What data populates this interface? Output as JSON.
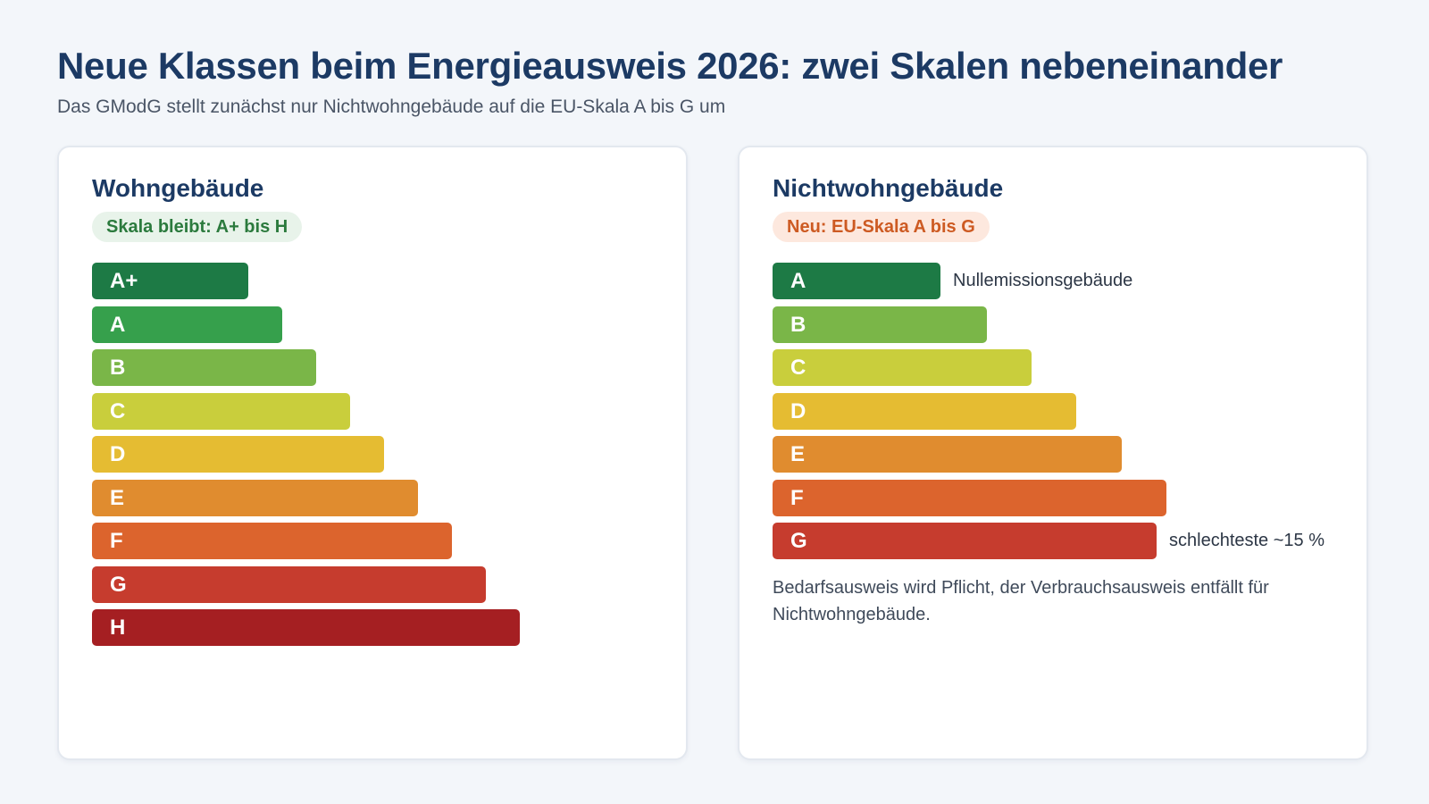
{
  "header": {
    "title": "Neue Klassen beim Energieausweis 2026: zwei Skalen nebeneinander",
    "subtitle": "Das GModG stellt zunächst nur Nichtwohngebäude auf die EU-Skala A bis G um"
  },
  "left_panel": {
    "title": "Wohngebäude",
    "badge": "Skala bleibt: A+ bis H",
    "classes": [
      {
        "label": "A+",
        "color": "#1d7a45"
      },
      {
        "label": "A",
        "color": "#36a04c"
      },
      {
        "label": "B",
        "color": "#7ab648"
      },
      {
        "label": "C",
        "color": "#c9ce3c"
      },
      {
        "label": "D",
        "color": "#e5bc32"
      },
      {
        "label": "E",
        "color": "#e08c2f"
      },
      {
        "label": "F",
        "color": "#dc642d"
      },
      {
        "label": "G",
        "color": "#c63c2e"
      },
      {
        "label": "H",
        "color": "#a51f22"
      }
    ]
  },
  "right_panel": {
    "title": "Nichtwohngebäude",
    "badge": "Neu: EU-Skala A bis G",
    "classes": [
      {
        "label": "A",
        "color": "#1d7a45",
        "note": "Nullemissionsgebäude"
      },
      {
        "label": "B",
        "color": "#7ab648",
        "note": ""
      },
      {
        "label": "C",
        "color": "#c9ce3c",
        "note": ""
      },
      {
        "label": "D",
        "color": "#e5bc32",
        "note": ""
      },
      {
        "label": "E",
        "color": "#e08c2f",
        "note": ""
      },
      {
        "label": "F",
        "color": "#dc642d",
        "note": ""
      },
      {
        "label": "G",
        "color": "#c63c2e",
        "note": "schlechteste ~15 %"
      }
    ],
    "footnote": "Bedarfsausweis wird Pflicht, der Verbrauchsausweis entfällt für Nichtwohngebäude."
  },
  "colors": {
    "title": "#1c3a64",
    "badge_green_bg": "#e8f3ea",
    "badge_orange_bg": "#fde8de"
  }
}
